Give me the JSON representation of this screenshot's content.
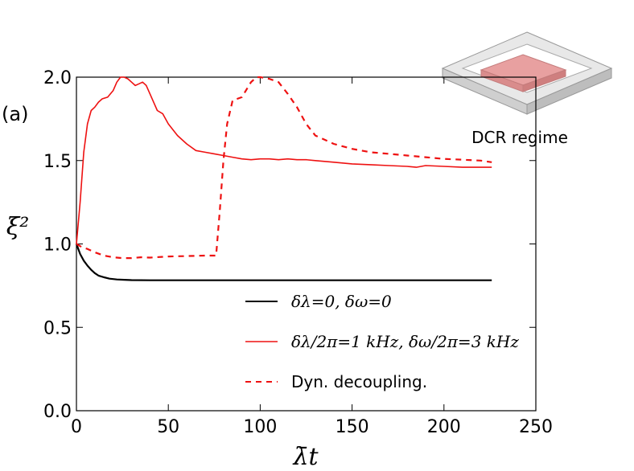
{
  "chart_data": {
    "type": "line",
    "panel_label": "(a)",
    "xlabel": "λ̄t",
    "ylabel": "ξ²",
    "xlim": [
      0,
      250
    ],
    "ylim": [
      0.0,
      2.0
    ],
    "xticks": [
      "0",
      "50",
      "100",
      "150",
      "200",
      "250"
    ],
    "yticks": [
      "0.0",
      "0.5",
      "1.0",
      "1.5",
      "2.0"
    ],
    "grid": false,
    "legend_position": "lower-right",
    "inset_label": "DCR regime",
    "series": [
      {
        "name": "δλ=0, δω=0",
        "color": "#000000",
        "style": "solid",
        "x": [
          0,
          2,
          4,
          6,
          8,
          10,
          12,
          15,
          18,
          22,
          26,
          30,
          40,
          60,
          100,
          150,
          200,
          226
        ],
        "y": [
          1.0,
          0.94,
          0.9,
          0.87,
          0.845,
          0.825,
          0.81,
          0.8,
          0.792,
          0.787,
          0.785,
          0.783,
          0.782,
          0.782,
          0.782,
          0.782,
          0.782,
          0.782
        ]
      },
      {
        "name": "δλ/2π=1 kHz, δω/2π=3 kHz",
        "color": "#ee1111",
        "style": "solid",
        "x": [
          0,
          2,
          4,
          6,
          8,
          10,
          12,
          14,
          17,
          20,
          22,
          24,
          26,
          28,
          30,
          32,
          34,
          36,
          38,
          40,
          42,
          44,
          47,
          50,
          55,
          60,
          65,
          70,
          75,
          80,
          85,
          90,
          95,
          100,
          105,
          110,
          115,
          120,
          125,
          130,
          140,
          150,
          160,
          170,
          180,
          185,
          190,
          200,
          210,
          220,
          226
        ],
        "y": [
          1.0,
          1.25,
          1.55,
          1.72,
          1.8,
          1.82,
          1.85,
          1.87,
          1.88,
          1.92,
          1.97,
          2.0,
          2.0,
          1.99,
          1.97,
          1.95,
          1.96,
          1.97,
          1.95,
          1.9,
          1.85,
          1.8,
          1.78,
          1.72,
          1.65,
          1.6,
          1.56,
          1.55,
          1.54,
          1.53,
          1.52,
          1.51,
          1.505,
          1.51,
          1.51,
          1.505,
          1.51,
          1.505,
          1.505,
          1.5,
          1.49,
          1.48,
          1.475,
          1.47,
          1.465,
          1.46,
          1.47,
          1.465,
          1.46,
          1.46,
          1.46
        ]
      },
      {
        "name": "Dyn. decoupling.",
        "color": "#ee1111",
        "style": "dashed",
        "x": [
          0,
          3,
          6,
          10,
          15,
          20,
          25,
          30,
          35,
          40,
          50,
          60,
          70,
          76,
          78,
          80,
          82,
          85,
          90,
          95,
          98,
          100,
          105,
          110,
          115,
          120,
          125,
          130,
          140,
          150,
          160,
          170,
          180,
          190,
          200,
          210,
          220,
          226
        ],
        "y": [
          1.0,
          0.98,
          0.97,
          0.95,
          0.93,
          0.92,
          0.915,
          0.915,
          0.92,
          0.918,
          0.925,
          0.927,
          0.93,
          0.93,
          1.2,
          1.5,
          1.72,
          1.86,
          1.88,
          1.97,
          2.0,
          2.0,
          1.99,
          1.97,
          1.9,
          1.82,
          1.72,
          1.65,
          1.6,
          1.57,
          1.55,
          1.54,
          1.53,
          1.52,
          1.51,
          1.505,
          1.5,
          1.49
        ]
      }
    ]
  }
}
